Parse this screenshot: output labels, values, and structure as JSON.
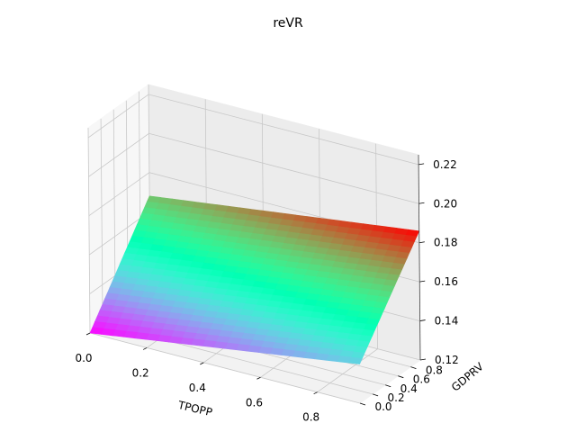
{
  "chart_data": {
    "type": "surface",
    "title": "reVR",
    "xlabel": "TPOPP",
    "ylabel": "GDPRV",
    "zlabel": "",
    "xlim": [
      0.0,
      0.95
    ],
    "ylim": [
      0.0,
      0.95
    ],
    "zlim": [
      0.12,
      0.225
    ],
    "x_ticks": [
      "0.0",
      "0.2",
      "0.4",
      "0.6",
      "0.8"
    ],
    "y_ticks": [
      "0.0",
      "0.2",
      "0.4",
      "0.6",
      "0.8"
    ],
    "z_ticks": [
      "0.12",
      "0.14",
      "0.16",
      "0.18",
      "0.20",
      "0.22"
    ],
    "colormap": "rainbow",
    "corners": [
      {
        "x": 0.0,
        "y": 0.0,
        "z": 0.12
      },
      {
        "x": 0.95,
        "y": 0.0,
        "z": 0.14
      },
      {
        "x": 0.0,
        "y": 0.95,
        "z": 0.168
      },
      {
        "x": 0.95,
        "y": 0.95,
        "z": 0.186
      }
    ],
    "grid": true
  }
}
